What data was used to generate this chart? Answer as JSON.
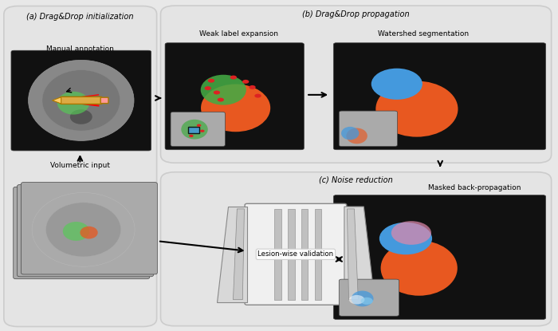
{
  "fig_width": 7.0,
  "fig_height": 4.15,
  "dpi": 100,
  "bg_color": "#e8e8e8",
  "panel_bg": "#e4e4e4",
  "panel_edge": "#cccccc",
  "image_bg_dark": "#111111",
  "title_a": "(a) Drag&Drop initialization",
  "title_b": "(b) Drag&Drop propagation",
  "title_c": "(c) Noise reduction",
  "label_manual": "Manual annotation",
  "label_volume": "Volumetric input",
  "label_weak": "Weak label expansion",
  "label_watershed": "Watershed segmentation",
  "label_lesion": "Lesion-wise validation",
  "label_masked": "Masked back-propagation",
  "orange_color": "#E85820",
  "blue_color": "#4499DD",
  "green_color": "#44AA44",
  "red_color": "#DD2222",
  "pink_color": "#DD88AA",
  "light_blue_color": "#88CCEE"
}
